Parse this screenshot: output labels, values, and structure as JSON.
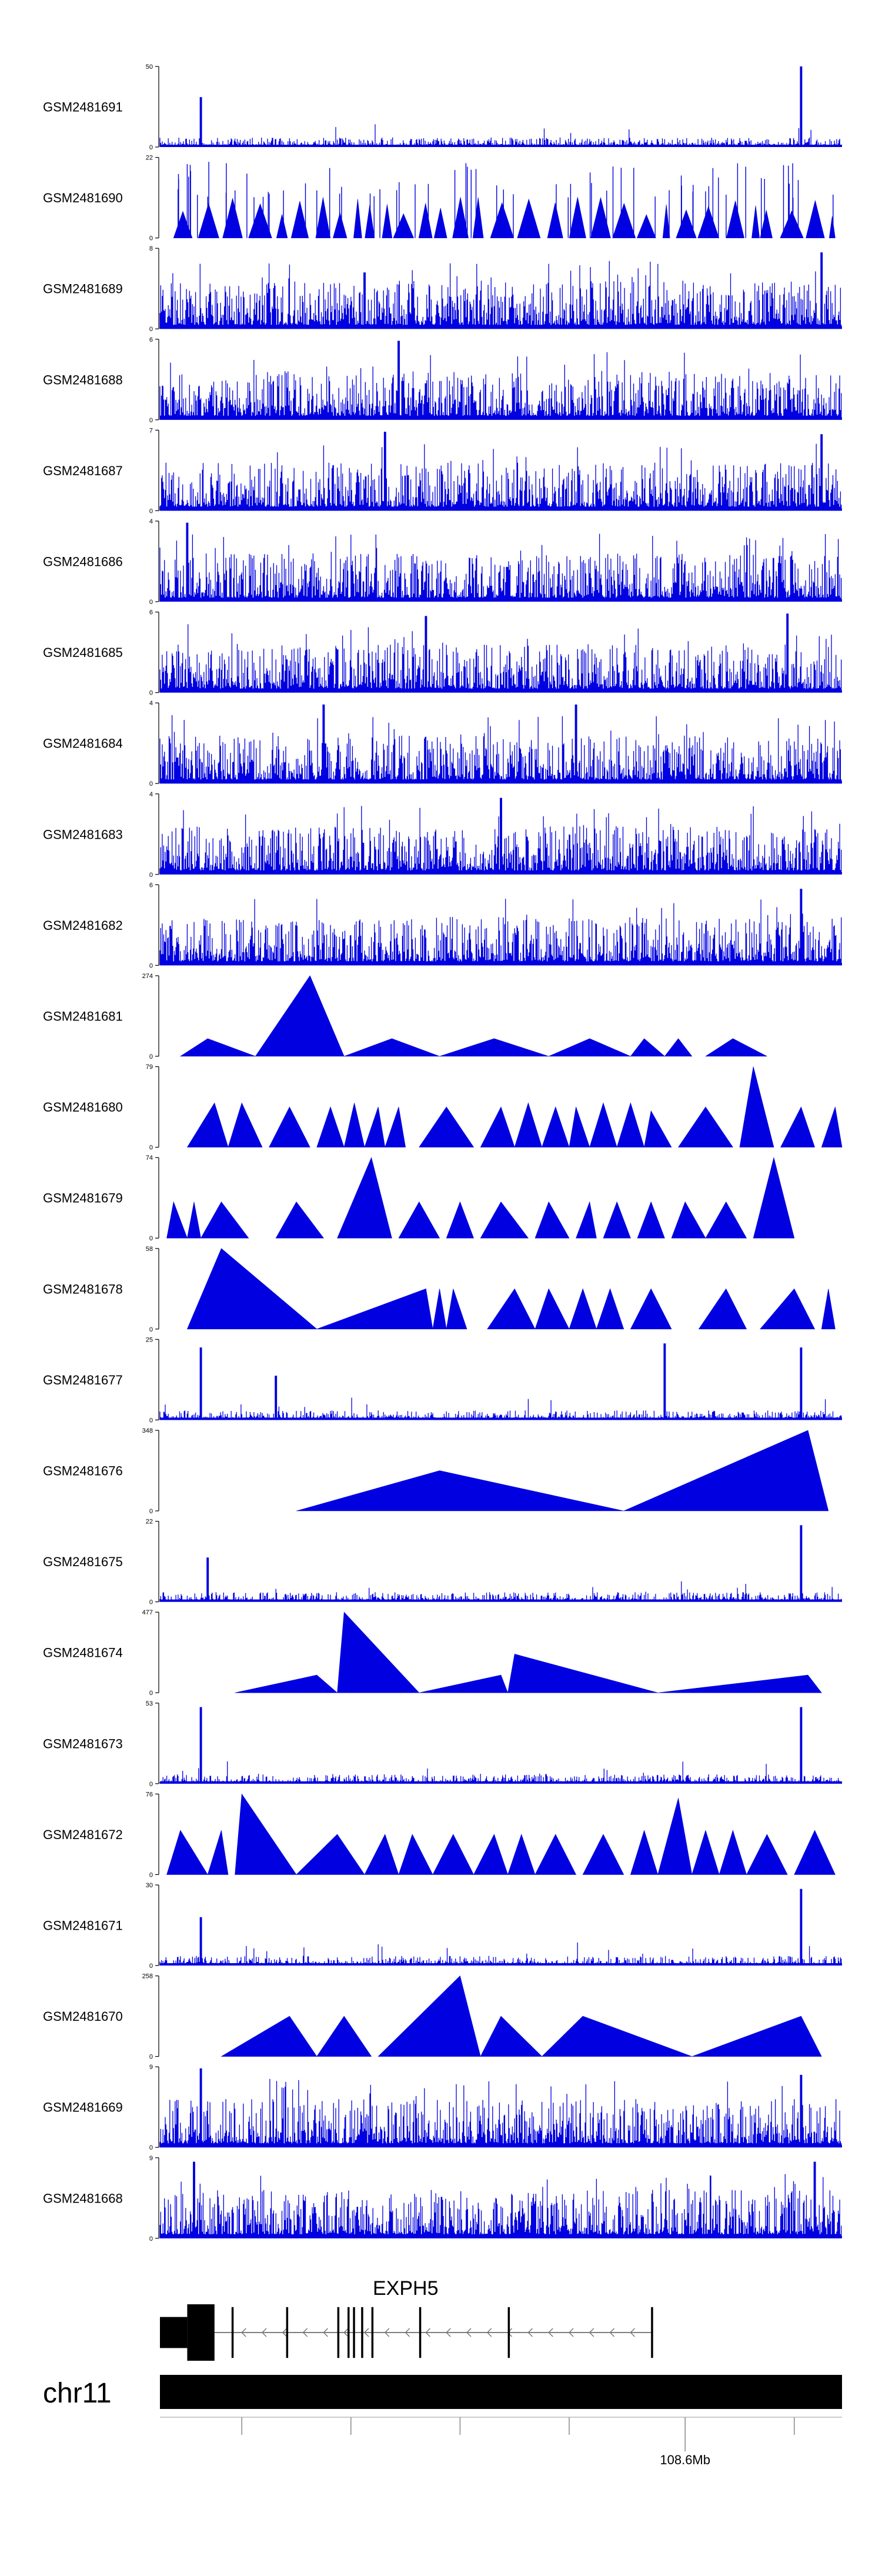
{
  "chart_data": {
    "type": "area",
    "title": "",
    "xlabel": "",
    "ylabel": "",
    "colors": {
      "signal": "#0000e0",
      "axis": "#000000",
      "gene": "#000000",
      "chromosome": "#000000"
    },
    "tracks": [
      {
        "sample": "GSM2481691",
        "ymax": "50",
        "ymin": "0",
        "max": 50,
        "style": "spiky",
        "peaks": [
          [
            0.06,
            0.62
          ],
          [
            0.94,
            1.0
          ]
        ]
      },
      {
        "sample": "GSM2481690",
        "ymax": "22",
        "ymin": "0",
        "max": 22,
        "style": "triangles",
        "peaks": [
          [
            0.36,
            1.0
          ],
          [
            0.38,
            1.0
          ],
          [
            0.4,
            0.95
          ]
        ]
      },
      {
        "sample": "GSM2481689",
        "ymax": "8",
        "ymin": "0",
        "max": 8,
        "style": "dense",
        "peaks": [
          [
            0.97,
            0.95
          ],
          [
            0.3,
            0.7
          ]
        ]
      },
      {
        "sample": "GSM2481688",
        "ymax": "6",
        "ymin": "0",
        "max": 6,
        "style": "dense",
        "peaks": [
          [
            0.35,
            0.98
          ]
        ]
      },
      {
        "sample": "GSM2481687",
        "ymax": "7",
        "ymin": "0",
        "max": 7,
        "style": "dense",
        "peaks": [
          [
            0.33,
            0.98
          ],
          [
            0.97,
            0.95
          ]
        ]
      },
      {
        "sample": "GSM2481686",
        "ymax": "4",
        "ymin": "0",
        "max": 4,
        "style": "dense",
        "peaks": [
          [
            0.04,
            0.98
          ]
        ]
      },
      {
        "sample": "GSM2481685",
        "ymax": "6",
        "ymin": "0",
        "max": 6,
        "style": "dense",
        "peaks": [
          [
            0.39,
            0.95
          ],
          [
            0.92,
            0.98
          ]
        ]
      },
      {
        "sample": "GSM2481684",
        "ymax": "4",
        "ymin": "0",
        "max": 4,
        "style": "dense",
        "peaks": [
          [
            0.24,
            0.98
          ],
          [
            0.61,
            0.98
          ]
        ]
      },
      {
        "sample": "GSM2481683",
        "ymax": "4",
        "ymin": "0",
        "max": 4,
        "style": "dense",
        "peaks": [
          [
            0.5,
            0.95
          ]
        ]
      },
      {
        "sample": "GSM2481682",
        "ymax": "6",
        "ymin": "0",
        "max": 6,
        "style": "dense",
        "peaks": [
          [
            0.94,
            0.95
          ]
        ]
      },
      {
        "sample": "GSM2481681",
        "ymax": "274",
        "ymin": "0",
        "max": 274,
        "style": "shapes",
        "shapes": [
          [
            0.03,
            0.07,
            0.14,
            0.22
          ],
          [
            0.14,
            0.22,
            0.27,
            1.0
          ],
          [
            0.27,
            0.34,
            0.41,
            0.22
          ],
          [
            0.41,
            0.49,
            0.57,
            0.22
          ],
          [
            0.57,
            0.63,
            0.69,
            0.22
          ],
          [
            0.69,
            0.71,
            0.74,
            0.22
          ],
          [
            0.74,
            0.76,
            0.78,
            0.22
          ],
          [
            0.8,
            0.84,
            0.89,
            0.22
          ]
        ]
      },
      {
        "sample": "GSM2481680",
        "ymax": "79",
        "ymin": "0",
        "max": 79,
        "style": "shapes",
        "shapes": [
          [
            0.04,
            0.08,
            0.1,
            0.55
          ],
          [
            0.1,
            0.12,
            0.15,
            0.55
          ],
          [
            0.16,
            0.19,
            0.22,
            0.5
          ],
          [
            0.23,
            0.25,
            0.27,
            0.5
          ],
          [
            0.27,
            0.285,
            0.3,
            0.55
          ],
          [
            0.3,
            0.32,
            0.33,
            0.5
          ],
          [
            0.33,
            0.35,
            0.36,
            0.5
          ],
          [
            0.38,
            0.42,
            0.46,
            0.5
          ],
          [
            0.47,
            0.5,
            0.52,
            0.5
          ],
          [
            0.52,
            0.54,
            0.56,
            0.55
          ],
          [
            0.56,
            0.58,
            0.6,
            0.5
          ],
          [
            0.6,
            0.61,
            0.63,
            0.5
          ],
          [
            0.63,
            0.65,
            0.67,
            0.55
          ],
          [
            0.67,
            0.69,
            0.71,
            0.55
          ],
          [
            0.71,
            0.72,
            0.75,
            0.45
          ],
          [
            0.76,
            0.8,
            0.84,
            0.5
          ],
          [
            0.85,
            0.87,
            0.9,
            1.0
          ],
          [
            0.91,
            0.94,
            0.96,
            0.5
          ],
          [
            0.97,
            0.99,
            1.0,
            0.5
          ]
        ]
      },
      {
        "sample": "GSM2481679",
        "ymax": "74",
        "ymin": "0",
        "max": 74,
        "style": "shapes",
        "shapes": [
          [
            0.01,
            0.02,
            0.04,
            0.45
          ],
          [
            0.04,
            0.05,
            0.06,
            0.45
          ],
          [
            0.06,
            0.09,
            0.13,
            0.45
          ],
          [
            0.17,
            0.2,
            0.24,
            0.45
          ],
          [
            0.26,
            0.31,
            0.34,
            1.0
          ],
          [
            0.35,
            0.38,
            0.41,
            0.45
          ],
          [
            0.42,
            0.44,
            0.46,
            0.45
          ],
          [
            0.47,
            0.5,
            0.54,
            0.45
          ],
          [
            0.55,
            0.57,
            0.6,
            0.45
          ],
          [
            0.61,
            0.63,
            0.64,
            0.45
          ],
          [
            0.65,
            0.67,
            0.69,
            0.45
          ],
          [
            0.7,
            0.72,
            0.74,
            0.45
          ],
          [
            0.75,
            0.77,
            0.8,
            0.45
          ],
          [
            0.8,
            0.83,
            0.86,
            0.45
          ],
          [
            0.87,
            0.9,
            0.93,
            1.0
          ]
        ]
      },
      {
        "sample": "GSM2481678",
        "ymax": "58",
        "ymin": "0",
        "max": 58,
        "style": "shapes",
        "shapes": [
          [
            0.04,
            0.09,
            0.23,
            1.0
          ],
          [
            0.23,
            0.39,
            0.4,
            0.5
          ],
          [
            0.4,
            0.41,
            0.42,
            0.5
          ],
          [
            0.42,
            0.43,
            0.45,
            0.5
          ],
          [
            0.48,
            0.52,
            0.55,
            0.5
          ],
          [
            0.55,
            0.57,
            0.6,
            0.5
          ],
          [
            0.6,
            0.62,
            0.64,
            0.5
          ],
          [
            0.64,
            0.66,
            0.68,
            0.5
          ],
          [
            0.69,
            0.72,
            0.75,
            0.5
          ],
          [
            0.79,
            0.83,
            0.86,
            0.5
          ],
          [
            0.88,
            0.93,
            0.96,
            0.5
          ],
          [
            0.97,
            0.98,
            0.99,
            0.5
          ]
        ]
      },
      {
        "sample": "GSM2481677",
        "ymax": "25",
        "ymin": "0",
        "max": 25,
        "style": "spiky",
        "peaks": [
          [
            0.06,
            0.9
          ],
          [
            0.17,
            0.55
          ],
          [
            0.74,
            0.95
          ],
          [
            0.94,
            0.9
          ]
        ]
      },
      {
        "sample": "GSM2481676",
        "ymax": "348",
        "ymin": "0",
        "max": 348,
        "style": "shapes",
        "shapes": [
          [
            0.2,
            0.41,
            0.68,
            0.5
          ],
          [
            0.68,
            0.95,
            0.98,
            1.0
          ]
        ]
      },
      {
        "sample": "GSM2481675",
        "ymax": "22",
        "ymin": "0",
        "max": 22,
        "style": "spiky",
        "peaks": [
          [
            0.07,
            0.55
          ],
          [
            0.94,
            0.95
          ]
        ]
      },
      {
        "sample": "GSM2481674",
        "ymax": "477",
        "ymin": "0",
        "max": 477,
        "style": "shapes",
        "shapes": [
          [
            0.11,
            0.23,
            0.26,
            0.22
          ],
          [
            0.26,
            0.27,
            0.38,
            1.0
          ],
          [
            0.38,
            0.5,
            0.51,
            0.22
          ],
          [
            0.51,
            0.52,
            0.73,
            0.48
          ],
          [
            0.73,
            0.95,
            0.97,
            0.22
          ]
        ]
      },
      {
        "sample": "GSM2481673",
        "ymax": "53",
        "ymin": "0",
        "max": 53,
        "style": "spiky",
        "peaks": [
          [
            0.06,
            0.95
          ],
          [
            0.94,
            0.95
          ]
        ]
      },
      {
        "sample": "GSM2481672",
        "ymax": "76",
        "ymin": "0",
        "max": 76,
        "style": "shapes",
        "shapes": [
          [
            0.01,
            0.03,
            0.07,
            0.55
          ],
          [
            0.07,
            0.09,
            0.1,
            0.55
          ],
          [
            0.11,
            0.12,
            0.2,
            1.0
          ],
          [
            0.2,
            0.26,
            0.3,
            0.5
          ],
          [
            0.3,
            0.33,
            0.35,
            0.5
          ],
          [
            0.35,
            0.37,
            0.4,
            0.5
          ],
          [
            0.4,
            0.43,
            0.46,
            0.5
          ],
          [
            0.46,
            0.49,
            0.51,
            0.5
          ],
          [
            0.51,
            0.53,
            0.55,
            0.5
          ],
          [
            0.55,
            0.58,
            0.61,
            0.5
          ],
          [
            0.62,
            0.65,
            0.68,
            0.5
          ],
          [
            0.69,
            0.71,
            0.73,
            0.55
          ],
          [
            0.73,
            0.76,
            0.78,
            0.95
          ],
          [
            0.78,
            0.8,
            0.82,
            0.55
          ],
          [
            0.82,
            0.84,
            0.86,
            0.55
          ],
          [
            0.86,
            0.89,
            0.92,
            0.5
          ],
          [
            0.93,
            0.96,
            0.99,
            0.55
          ]
        ]
      },
      {
        "sample": "GSM2481671",
        "ymax": "30",
        "ymin": "0",
        "max": 30,
        "style": "spiky",
        "peaks": [
          [
            0.06,
            0.6
          ],
          [
            0.94,
            0.95
          ]
        ]
      },
      {
        "sample": "GSM2481670",
        "ymax": "258",
        "ymin": "0",
        "max": 258,
        "style": "shapes",
        "shapes": [
          [
            0.09,
            0.19,
            0.23,
            0.5
          ],
          [
            0.23,
            0.27,
            0.31,
            0.5
          ],
          [
            0.32,
            0.44,
            0.47,
            1.0
          ],
          [
            0.47,
            0.5,
            0.56,
            0.5
          ],
          [
            0.56,
            0.62,
            0.78,
            0.5
          ],
          [
            0.78,
            0.94,
            0.97,
            0.5
          ]
        ]
      },
      {
        "sample": "GSM2481669",
        "ymax": "9",
        "ymin": "0",
        "max": 9,
        "style": "dense",
        "peaks": [
          [
            0.06,
            0.98
          ],
          [
            0.94,
            0.9
          ]
        ]
      },
      {
        "sample": "GSM2481668",
        "ymax": "9",
        "ymin": "0",
        "max": 9,
        "style": "dense",
        "peaks": [
          [
            0.05,
            0.95
          ],
          [
            0.96,
            0.95
          ]
        ]
      }
    ],
    "gene": {
      "name": "EXPH5",
      "strand": "-",
      "exons": [
        [
          0.0,
          0.04,
          0.55
        ],
        [
          0.04,
          0.08,
          1.0
        ],
        [
          0.105,
          0.108,
          0.9
        ],
        [
          0.185,
          0.188,
          0.9
        ],
        [
          0.26,
          0.263,
          0.9
        ],
        [
          0.275,
          0.278,
          0.9
        ],
        [
          0.283,
          0.286,
          0.9
        ],
        [
          0.295,
          0.298,
          0.9
        ],
        [
          0.31,
          0.313,
          0.9
        ],
        [
          0.38,
          0.383,
          0.9
        ],
        [
          0.51,
          0.513,
          0.9
        ],
        [
          0.72,
          0.723,
          0.9
        ]
      ]
    },
    "chromosome": {
      "name": "chr11",
      "ticks": [
        0.12,
        0.28,
        0.44,
        0.6,
        0.77,
        0.93
      ],
      "labeled_tick": 0.77,
      "tick_label": "108.6Mb"
    }
  }
}
